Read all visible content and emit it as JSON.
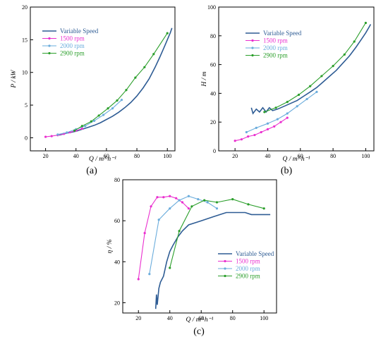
{
  "colors": {
    "variable": "#2e5c94",
    "r1500": "#ea2fcf",
    "r2000": "#6aacdc",
    "r2900": "#2a9e2a"
  },
  "chart_data": [
    {
      "id": "a",
      "panel_label": "(a)",
      "type": "line",
      "xlabel": "Q / m³·h⁻¹",
      "ylabel": "P / kW",
      "xlim": [
        10,
        105
      ],
      "ylim": [
        -2,
        20
      ],
      "xticks": [
        20,
        40,
        60,
        80,
        100
      ],
      "yticks": [
        0,
        5,
        10,
        15,
        20
      ],
      "legend_position": "top-left",
      "series": [
        {
          "name": "Variable Speed",
          "color_key": "variable",
          "marker": "none",
          "x": [
            29,
            32,
            36,
            40,
            44,
            48,
            52,
            56,
            60,
            64,
            68,
            72,
            76,
            80,
            84,
            88,
            92,
            95,
            98,
            100,
            102,
            103
          ],
          "y": [
            0.4,
            0.6,
            0.8,
            1.0,
            1.3,
            1.6,
            1.9,
            2.3,
            2.8,
            3.3,
            3.9,
            4.6,
            5.4,
            6.4,
            7.6,
            9.0,
            10.8,
            12.3,
            13.9,
            15.0,
            16.1,
            16.8
          ]
        },
        {
          "name": "1500 rpm",
          "color_key": "r1500",
          "marker": "dot",
          "x": [
            20,
            24,
            28,
            32,
            36,
            40,
            44
          ],
          "y": [
            0.15,
            0.25,
            0.4,
            0.6,
            0.85,
            1.1,
            1.4
          ]
        },
        {
          "name": "2000 rpm",
          "color_key": "r2000",
          "marker": "dot",
          "x": [
            28,
            34,
            40,
            46,
            52,
            58,
            64,
            70
          ],
          "y": [
            0.5,
            0.8,
            1.3,
            1.8,
            2.6,
            3.5,
            4.5,
            5.8
          ]
        },
        {
          "name": "2900 rpm",
          "color_key": "r2900",
          "marker": "dot",
          "x": [
            39,
            44,
            50,
            55,
            61,
            67,
            73,
            79,
            85,
            91,
            100
          ],
          "y": [
            1.1,
            1.8,
            2.5,
            3.4,
            4.5,
            5.7,
            7.3,
            9.2,
            10.8,
            12.8,
            16.0
          ]
        }
      ]
    },
    {
      "id": "b",
      "panel_label": "(b)",
      "type": "line",
      "xlabel": "Q / m³·h⁻¹",
      "ylabel": "H / m",
      "xlim": [
        10,
        105
      ],
      "ylim": [
        0,
        100
      ],
      "xticks": [
        20,
        40,
        60,
        80,
        100
      ],
      "yticks": [
        0,
        20,
        40,
        60,
        80,
        100
      ],
      "legend_position": "top-left",
      "series": [
        {
          "name": "Variable Speed",
          "color_key": "variable",
          "marker": "none",
          "x": [
            30,
            31,
            33,
            35,
            37,
            39,
            41,
            43,
            46,
            50,
            54,
            58,
            62,
            66,
            70,
            74,
            78,
            82,
            86,
            90,
            94,
            97,
            100,
            102,
            103
          ],
          "y": [
            30,
            26,
            29,
            27,
            30,
            27,
            30,
            28,
            29,
            31,
            33,
            35,
            38,
            41,
            44,
            48,
            52,
            56,
            61,
            66,
            72,
            77,
            82,
            86,
            88
          ]
        },
        {
          "name": "1500 rpm",
          "color_key": "r1500",
          "marker": "dot",
          "x": [
            20,
            24,
            28,
            32,
            36,
            40,
            44,
            48,
            52
          ],
          "y": [
            7,
            8,
            10,
            11,
            13,
            15,
            17,
            20,
            23
          ]
        },
        {
          "name": "2000 rpm",
          "color_key": "r2000",
          "marker": "dot",
          "x": [
            27,
            33,
            40,
            46,
            52,
            58,
            64,
            70
          ],
          "y": [
            13,
            16,
            19,
            22,
            26,
            31,
            36,
            41
          ]
        },
        {
          "name": "2900 rpm",
          "color_key": "r2900",
          "marker": "dot",
          "x": [
            38,
            45,
            52,
            59,
            66,
            73,
            80,
            87,
            93,
            100
          ],
          "y": [
            27,
            30,
            34,
            39,
            45,
            52,
            59,
            67,
            76,
            89
          ]
        }
      ]
    },
    {
      "id": "c",
      "panel_label": "(c)",
      "type": "line",
      "xlabel": "Q / m³·h⁻¹",
      "ylabel": "η / %",
      "xlim": [
        10,
        108
      ],
      "ylim": [
        15,
        80
      ],
      "xticks": [
        20,
        40,
        60,
        80,
        100
      ],
      "yticks": [
        20,
        40,
        60,
        80
      ],
      "legend_position": "bottom-right",
      "series": [
        {
          "name": "Variable Speed",
          "color_key": "variable",
          "marker": "none",
          "x": [
            31,
            31.5,
            32,
            33,
            34,
            36,
            38,
            40,
            42,
            45,
            48,
            52,
            56,
            60,
            64,
            68,
            72,
            76,
            80,
            84,
            88,
            92,
            96,
            100,
            104
          ],
          "y": [
            17,
            24,
            19,
            27,
            30,
            33,
            40,
            45,
            48,
            52,
            55,
            58,
            59,
            60,
            61,
            62,
            63,
            64,
            64,
            64,
            64,
            63,
            63,
            63,
            63
          ]
        },
        {
          "name": "1500 rpm",
          "color_key": "r1500",
          "marker": "dot",
          "x": [
            20,
            24,
            28,
            32,
            36,
            40,
            44,
            48,
            52
          ],
          "y": [
            31.5,
            54,
            67,
            71.5,
            71.5,
            72,
            71,
            69,
            66
          ]
        },
        {
          "name": "2000 rpm",
          "color_key": "r2000",
          "marker": "dot",
          "x": [
            27,
            33,
            40,
            46,
            52,
            58,
            64,
            70
          ],
          "y": [
            34,
            60.5,
            66,
            70,
            72,
            70.5,
            69,
            66
          ]
        },
        {
          "name": "2900 rpm",
          "color_key": "r2900",
          "marker": "dot",
          "x": [
            40,
            46,
            54,
            62,
            70,
            80,
            90,
            100
          ],
          "y": [
            37,
            55,
            67,
            70,
            69,
            70.5,
            68,
            66
          ]
        }
      ]
    }
  ]
}
